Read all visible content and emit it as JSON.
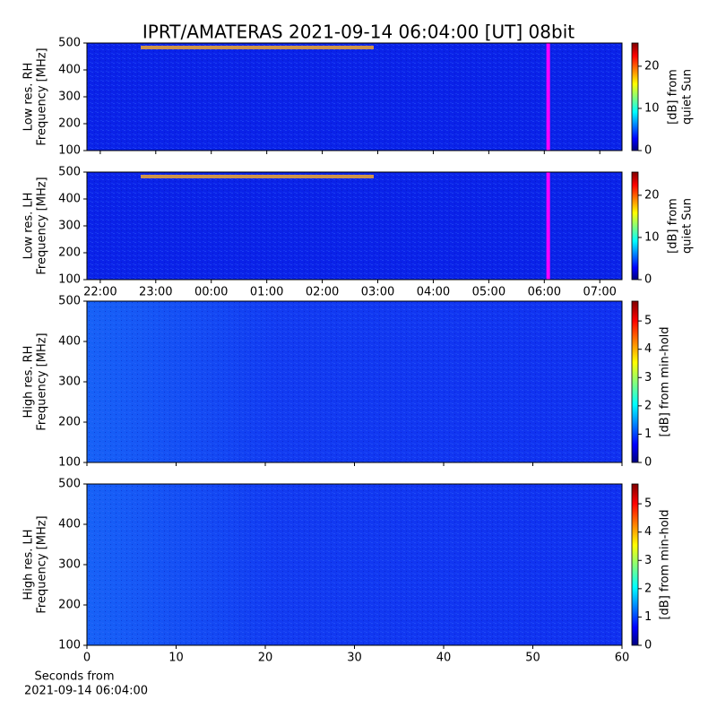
{
  "chart_data": [
    {
      "type": "heatmap",
      "title": "IPRT/AMATERAS 2021-09-14 06:04:00 [UT]   08bit",
      "ylabel": [
        "Low res. RH",
        "Frequency [MHz]"
      ],
      "ylim": [
        100,
        500
      ],
      "yticks": [
        100,
        200,
        300,
        400,
        500
      ],
      "xlim": [
        21.76,
        31.4
      ],
      "xticks": [
        22,
        23,
        24,
        25,
        26,
        27,
        28,
        29,
        30,
        31
      ],
      "xtick_labels": false,
      "color": "#0a22e8",
      "marker_x": 30.07,
      "marker_color": "#ff00ff",
      "colorbar": {
        "label": [
          "[dB] from",
          "quiet Sun"
        ],
        "lim": [
          0,
          25.5
        ],
        "ticks": [
          0,
          10,
          20
        ]
      }
    },
    {
      "type": "heatmap",
      "ylabel": [
        "Low res. LH",
        "Frequency [MHz]"
      ],
      "ylim": [
        100,
        500
      ],
      "yticks": [
        100,
        200,
        300,
        400,
        500
      ],
      "xlim": [
        21.76,
        31.4
      ],
      "xticks": [
        {
          "value": 22,
          "label": "22:00"
        },
        {
          "value": 23,
          "label": "23:00"
        },
        {
          "value": 24,
          "label": "00:00"
        },
        {
          "value": 25,
          "label": "01:00"
        },
        {
          "value": 26,
          "label": "02:00"
        },
        {
          "value": 27,
          "label": "03:00"
        },
        {
          "value": 28,
          "label": "04:00"
        },
        {
          "value": 29,
          "label": "05:00"
        },
        {
          "value": 30,
          "label": "06:00"
        },
        {
          "value": 31,
          "label": "07:00"
        }
      ],
      "xtick_labels": true,
      "color": "#0a22e8",
      "marker_x": 30.07,
      "marker_color": "#ff00ff",
      "colorbar": {
        "label": [
          "[dB] from",
          "quiet Sun"
        ],
        "lim": [
          0,
          25.5
        ],
        "ticks": [
          0,
          10,
          20
        ]
      }
    },
    {
      "type": "heatmap",
      "ylabel": [
        "High res. RH",
        "Frequency [MHz]"
      ],
      "ylim": [
        100,
        500
      ],
      "yticks": [
        100,
        200,
        300,
        400,
        500
      ],
      "xlim": [
        0,
        60
      ],
      "xticks": [
        0,
        10,
        20,
        30,
        40,
        50,
        60
      ],
      "xtick_labels": false,
      "color": "#1030f0",
      "colorbar": {
        "label": [
          "[dB] from min-hold"
        ],
        "lim": [
          0,
          5.7
        ],
        "ticks": [
          0,
          1,
          2,
          3,
          4,
          5
        ]
      }
    },
    {
      "type": "heatmap",
      "ylabel": [
        "High res. LH",
        "Frequency [MHz]"
      ],
      "ylim": [
        100,
        500
      ],
      "yticks": [
        100,
        200,
        300,
        400,
        500
      ],
      "xlim": [
        0,
        60
      ],
      "xticks": [
        0,
        10,
        20,
        30,
        40,
        50,
        60
      ],
      "xtick_labels": true,
      "xlabel": [
        "Seconds from",
        "2021-09-14 06:04:00"
      ],
      "color": "#1030f0",
      "colorbar": {
        "label": [
          "[dB] from min-hold"
        ],
        "lim": [
          0,
          5.7
        ],
        "ticks": [
          0,
          1,
          2,
          3,
          4,
          5
        ]
      }
    }
  ]
}
